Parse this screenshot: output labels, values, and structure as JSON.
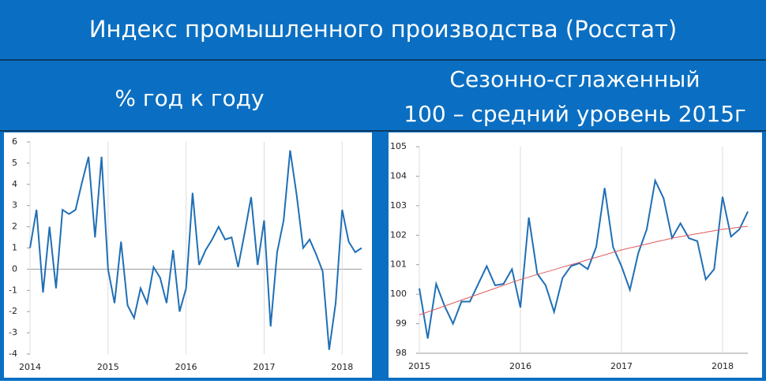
{
  "title": "Индекс промышленного производства (Росстат)",
  "chart_data": [
    {
      "type": "line",
      "title": "% год к году",
      "categories": [
        "2014",
        null,
        null,
        null,
        null,
        null,
        null,
        null,
        null,
        null,
        null,
        null,
        "2015",
        null,
        null,
        null,
        null,
        null,
        null,
        null,
        null,
        null,
        null,
        null,
        "2016",
        null,
        null,
        null,
        null,
        null,
        null,
        null,
        null,
        null,
        null,
        null,
        "2017",
        null,
        null,
        null,
        null,
        null,
        null,
        null,
        null,
        null,
        null,
        null,
        "2018",
        null,
        null,
        null
      ],
      "series": [
        {
          "color": "#1f6fb5",
          "values": [
            1.0,
            2.8,
            -1.1,
            2.0,
            -0.9,
            2.8,
            2.6,
            2.8,
            4.1,
            5.3,
            1.5,
            5.3,
            0.0,
            -1.6,
            1.3,
            -1.7,
            -2.3,
            -0.9,
            -1.6,
            0.1,
            -0.4,
            -1.6,
            0.9,
            -2.0,
            -0.9,
            3.6,
            0.2,
            0.9,
            1.4,
            2.0,
            1.4,
            1.5,
            0.1,
            1.7,
            3.4,
            0.2,
            2.3,
            -2.7,
            0.8,
            2.3,
            5.6,
            3.5,
            1.0,
            1.4,
            0.7,
            -0.1,
            -3.8,
            -1.6,
            2.8,
            1.3,
            0.8,
            1.0
          ]
        }
      ],
      "ylim": [
        -4,
        6
      ],
      "yticks": [
        -4,
        -3,
        -2,
        -1,
        0,
        1,
        2,
        3,
        4,
        5,
        6
      ],
      "grid": true
    },
    {
      "type": "line",
      "title": "Сезонно-сглаженный",
      "subtitle": "100 – средний уровень 2015г",
      "categories": [
        "2015",
        null,
        null,
        null,
        null,
        null,
        null,
        null,
        null,
        null,
        null,
        null,
        "2016",
        null,
        null,
        null,
        null,
        null,
        null,
        null,
        null,
        null,
        null,
        null,
        "2017",
        null,
        null,
        null,
        null,
        null,
        null,
        null,
        null,
        null,
        null,
        null,
        "2018",
        null,
        null,
        null
      ],
      "series": [
        {
          "color": "#1f6fb5",
          "values": [
            100.2,
            98.5,
            100.35,
            99.6,
            99.0,
            99.75,
            99.75,
            100.35,
            100.95,
            100.3,
            100.35,
            100.85,
            99.55,
            102.6,
            100.7,
            100.3,
            99.4,
            100.55,
            100.95,
            101.05,
            100.85,
            101.6,
            103.6,
            101.6,
            100.95,
            100.15,
            101.4,
            102.2,
            103.85,
            103.25,
            101.9,
            102.4,
            101.9,
            101.8,
            100.5,
            100.85,
            103.3,
            101.95,
            102.2,
            102.8
          ]
        },
        {
          "color": "#e05a5a",
          "values": [
            99.3,
            99.4,
            99.5,
            99.6,
            99.7,
            99.8,
            99.9,
            100.0,
            100.1,
            100.2,
            100.3,
            100.4,
            100.5,
            100.58,
            100.67,
            100.75,
            100.83,
            100.92,
            101.0,
            101.08,
            101.17,
            101.25,
            101.33,
            101.42,
            101.5,
            101.57,
            101.63,
            101.7,
            101.77,
            101.83,
            101.9,
            101.95,
            102.0,
            102.05,
            102.1,
            102.15,
            102.2,
            102.23,
            102.27,
            102.3
          ]
        }
      ],
      "ylim": [
        98,
        105
      ],
      "yticks": [
        98,
        99,
        100,
        101,
        102,
        103,
        104,
        105
      ],
      "grid": true
    }
  ]
}
